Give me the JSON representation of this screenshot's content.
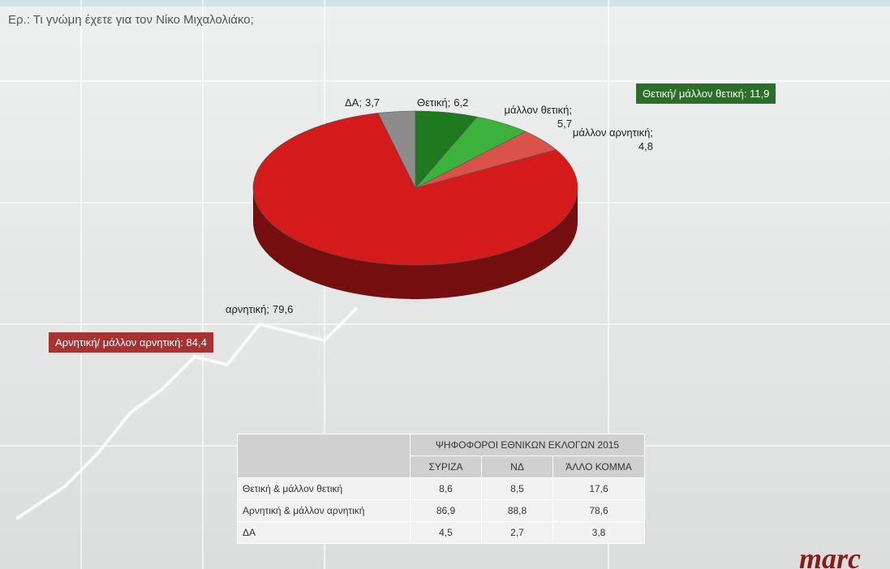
{
  "chart_data": {
    "type": "pie3d",
    "title": "Ερ.: Τι γνώμη έχετε για τον Νίκο Μιχαλολιάκο;",
    "categories": [
      "Θετική;",
      "μάλλον θετική;",
      "μάλλον αρνητική;",
      "αρνητική;",
      "ΔΑ;"
    ],
    "values": [
      6.2,
      5.7,
      4.8,
      79.6,
      3.7
    ],
    "value_labels": [
      "6,2",
      "5,7",
      "4,8",
      "79,6",
      "3,7"
    ],
    "colors": [
      "#1e7a1e",
      "#3cb23c",
      "#d9534a",
      "#d41a1a",
      "#8c8c8c"
    ],
    "annotations": [
      {
        "text": "Θετική/ μάλλον θετική: 11,9",
        "color": "#2a6e2a"
      },
      {
        "text": "Αρνητική/ μάλλον  αρνητική: 84,4",
        "color": "#a83232"
      }
    ]
  },
  "table": {
    "title": "ΨΗΦΟΦΟΡΟΙ ΕΘΝΙΚΩΝ ΕΚΛΟΓΩΝ 2015",
    "columns": [
      "ΣΥΡΙΖΑ",
      "ΝΔ",
      "ΆΛΛΟ ΚΟΜΜΑ"
    ],
    "rows": [
      [
        "Θετική & μάλλον θετική",
        "8,6",
        "8,5",
        "17,6"
      ],
      [
        "Αρνητική & μάλλον αρνητική",
        "86,9",
        "88,8",
        "78,6"
      ],
      [
        "ΔΑ",
        "4,5",
        "2,7",
        "3,8"
      ]
    ]
  },
  "logo": "marc"
}
